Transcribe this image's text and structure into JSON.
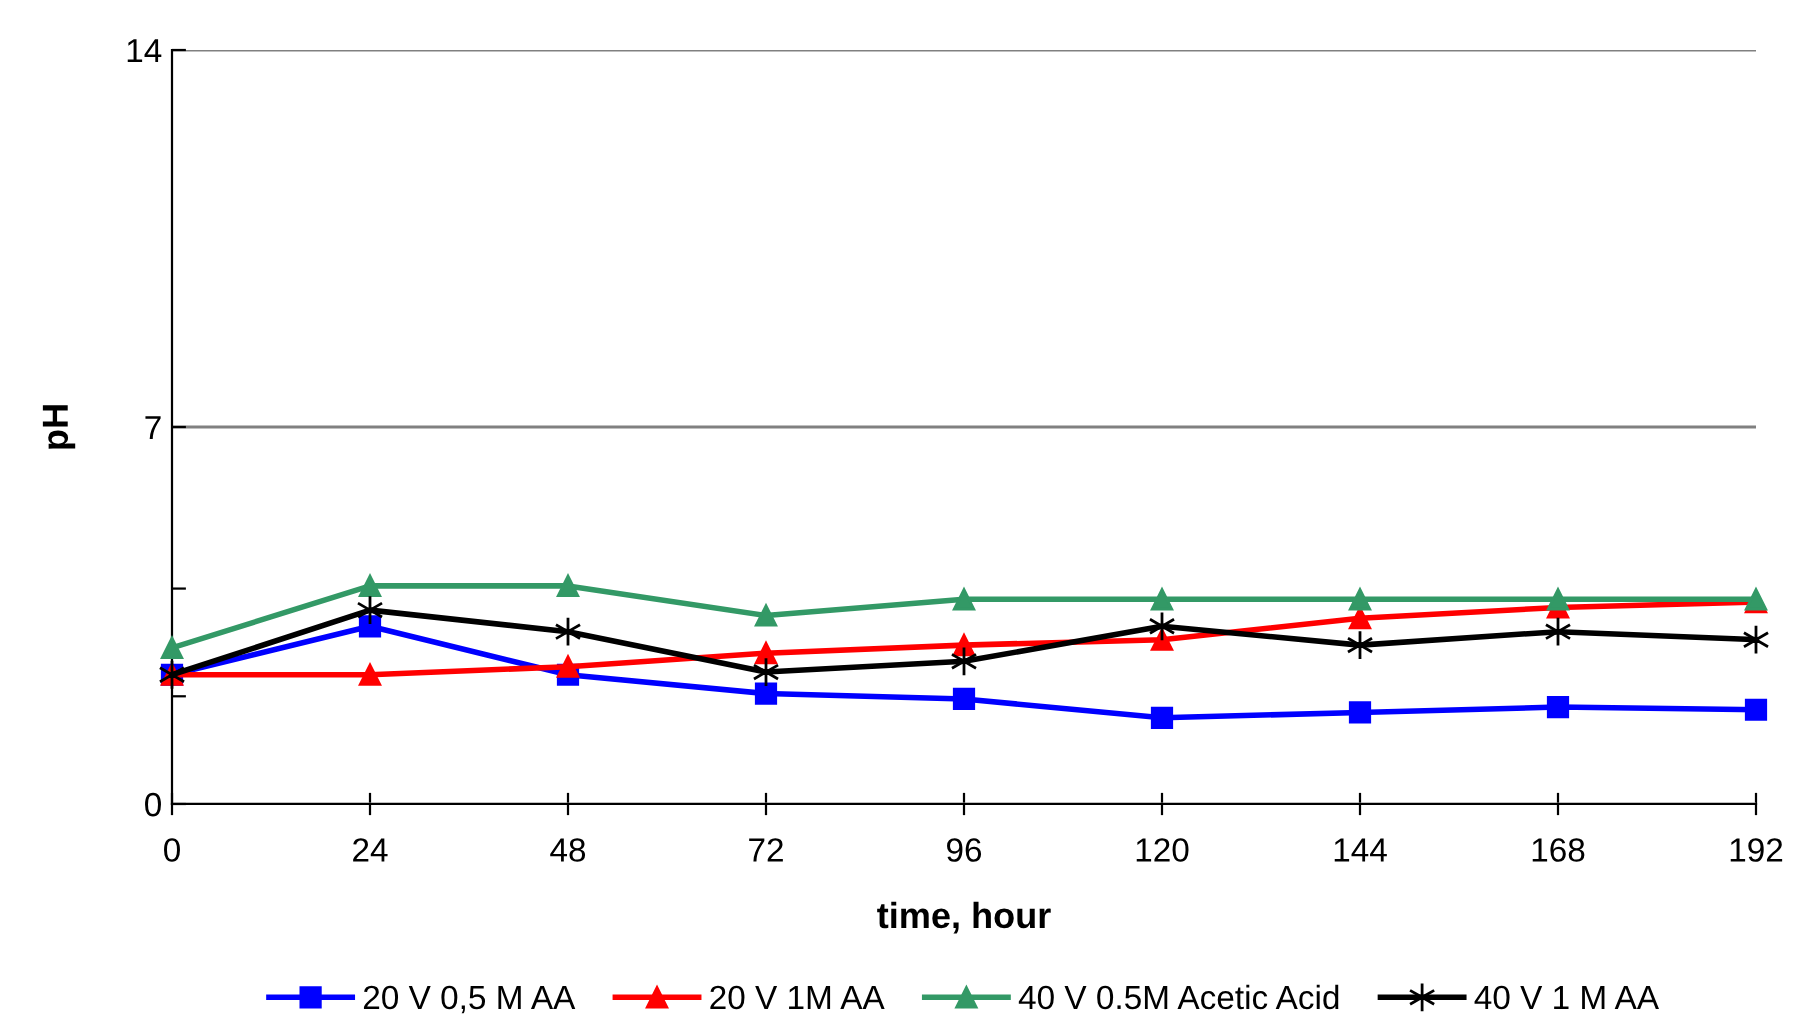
{
  "chart_data": {
    "type": "line",
    "xlabel": "time, hour",
    "ylabel": "pH",
    "x": [
      0,
      24,
      48,
      72,
      96,
      120,
      144,
      168,
      192
    ],
    "xlim": [
      0,
      192
    ],
    "xticks": [
      0,
      24,
      48,
      72,
      96,
      120,
      144,
      168,
      192
    ],
    "ylim": [
      0,
      14
    ],
    "yticks": [
      0,
      {
        "value": 2,
        "label": null
      },
      {
        "value": 4,
        "label": null
      },
      7,
      14
    ],
    "grid": "y",
    "legend": "bottom",
    "line_style": "solid",
    "series": [
      {
        "name": "20 V 0,5 M AA",
        "color": "#0000ff",
        "marker": "square",
        "values": [
          2.4,
          3.3,
          2.4,
          2.05,
          1.95,
          1.6,
          1.7,
          1.8,
          1.75
        ]
      },
      {
        "name": "20 V 1M AA",
        "color": "#ff0000",
        "marker": "triangle",
        "values": [
          2.4,
          2.4,
          2.55,
          2.8,
          2.95,
          3.05,
          3.45,
          3.65,
          3.75
        ]
      },
      {
        "name": "40 V 0.5M Acetic Acid",
        "color": "#339966",
        "marker": "triangle",
        "values": [
          2.9,
          4.05,
          4.05,
          3.5,
          3.8,
          3.8,
          3.8,
          3.8,
          3.8
        ]
      },
      {
        "name": "40 V 1 M AA",
        "color": "#000000",
        "marker": "cross",
        "values": [
          2.4,
          3.6,
          3.2,
          2.45,
          2.65,
          3.3,
          2.95,
          3.2,
          3.05
        ]
      }
    ]
  }
}
